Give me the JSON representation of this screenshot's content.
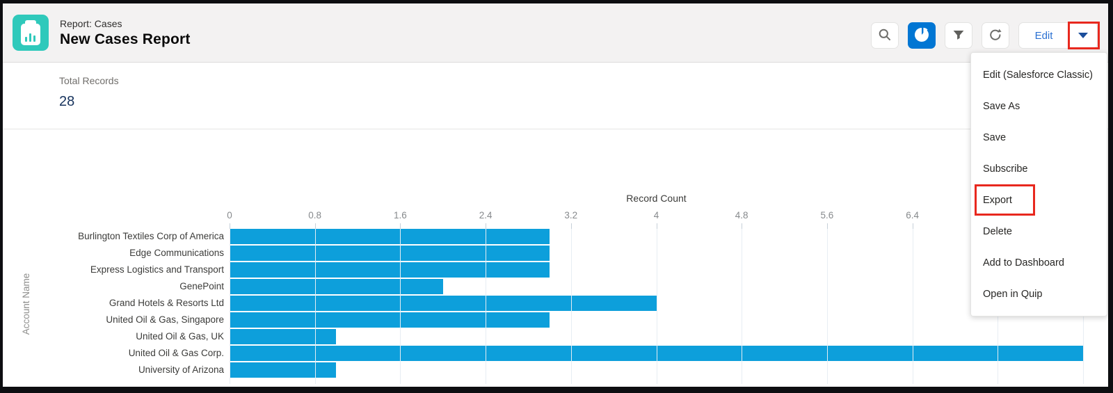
{
  "header": {
    "record_type": "Report: Cases",
    "title": "New Cases Report",
    "icon": {
      "name": "report-icon",
      "bg_color": "#2FC9BB"
    },
    "toolbar": {
      "search_icon": "search",
      "chart_icon": "pie-chart",
      "chart_active": true,
      "filter_icon": "filter-funnel",
      "refresh_icon": "refresh",
      "edit_label": "Edit",
      "caret_icon": "chevron-down"
    }
  },
  "summary": {
    "total_records_label": "Total Records",
    "total_records_value": "28"
  },
  "menu": {
    "items": [
      "Edit (Salesforce Classic)",
      "Save As",
      "Save",
      "Subscribe",
      "Export",
      "Delete",
      "Add to Dashboard",
      "Open in Quip"
    ],
    "highlighted_item": "Export"
  },
  "annotations": {
    "highlight_color": "#E8281E",
    "highlighted_controls": [
      "dropdown-caret-button",
      "menu-item-export"
    ]
  },
  "colors": {
    "accent_blue": "#0176d3",
    "edit_text": "#2b71d2",
    "caret": "#1b4e9b",
    "header_bg": "#f3f2f2",
    "value_navy": "#16325c"
  },
  "chart_data": {
    "type": "bar",
    "orientation": "horizontal",
    "title": "Record Count",
    "xlabel": "Record Count",
    "ylabel": "Account Name",
    "categories": [
      "Burlington Textiles Corp of America",
      "Edge Communications",
      "Express Logistics and Transport",
      "GenePoint",
      "Grand Hotels & Resorts Ltd",
      "United Oil & Gas, Singapore",
      "United Oil & Gas, UK",
      "United Oil & Gas Corp.",
      "University of Arizona"
    ],
    "values": [
      3,
      3,
      3,
      2,
      4,
      3,
      1,
      8,
      1
    ],
    "xlim": [
      0,
      8
    ],
    "xticks": {
      "labels": [
        "0",
        "0.8",
        "1.6",
        "2.4",
        "3.2",
        "4",
        "4.8",
        "5.6",
        "6.4"
      ],
      "positions_pct": [
        0,
        10,
        20,
        30,
        40,
        50,
        60,
        70,
        80
      ]
    },
    "gridlines_pct": [
      0,
      10,
      20,
      30,
      40,
      50,
      60,
      70,
      80,
      90,
      100
    ],
    "bar_color": "#0D9FDB",
    "grid": true,
    "legend": false,
    "total_records": 28
  }
}
